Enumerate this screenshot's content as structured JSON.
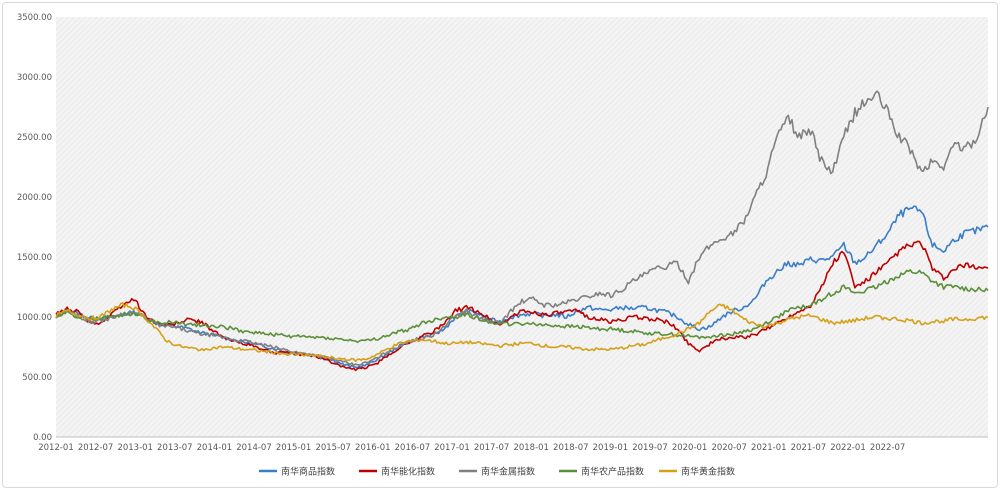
{
  "chart_data": {
    "type": "line",
    "title": "",
    "xlabel": "",
    "ylabel": "",
    "ylim": [
      0,
      3500
    ],
    "y_ticks": [
      "0.00",
      "500.00",
      "1000.00",
      "1500.00",
      "2000.00",
      "2500.00",
      "3000.00",
      "3500.00"
    ],
    "x_ticks": [
      "2012-01",
      "2012-07",
      "2013-01",
      "2013-07",
      "2014-01",
      "2014-07",
      "2015-01",
      "2015-07",
      "2016-01",
      "2016-07",
      "2017-01",
      "2017-07",
      "2018-01",
      "2018-07",
      "2019-01",
      "2019-07",
      "2020-01",
      "2020-07",
      "2021-01",
      "2021-07",
      "2022-01",
      "2022-07"
    ],
    "grid": "background hatched, no gridlines",
    "legend_position": "bottom",
    "series": [
      {
        "name": "南华商品指数",
        "color": "#3a7dc9",
        "values": [
          1010,
          1060,
          1030,
          990,
          990,
          1000,
          1020,
          1040,
          1000,
          950,
          930,
          920,
          900,
          870,
          850,
          830,
          810,
          790,
          770,
          750,
          730,
          700,
          690,
          680,
          660,
          640,
          600,
          580,
          600,
          650,
          700,
          760,
          800,
          830,
          850,
          900,
          1000,
          1050,
          1030,
          980,
          960,
          1000,
          1020,
          1030,
          1010,
          1020,
          1000,
          1050,
          1080,
          1060,
          1060,
          1080,
          1070,
          1080,
          1060,
          1040,
          1000,
          940,
          900,
          920,
          1000,
          1050,
          1080,
          1150,
          1300,
          1380,
          1450,
          1430,
          1480,
          1470,
          1500,
          1600,
          1450,
          1500,
          1600,
          1700,
          1850,
          1900,
          1880,
          1600,
          1550,
          1650,
          1700,
          1720,
          1750
        ]
      },
      {
        "name": "南华能化指数",
        "color": "#c00000",
        "values": [
          1020,
          1070,
          1040,
          960,
          950,
          1020,
          1100,
          1150,
          1020,
          950,
          930,
          950,
          980,
          960,
          900,
          830,
          800,
          780,
          750,
          720,
          700,
          700,
          690,
          680,
          660,
          620,
          580,
          560,
          580,
          620,
          680,
          750,
          800,
          840,
          880,
          940,
          1050,
          1080,
          1050,
          990,
          930,
          1000,
          1050,
          1040,
          1020,
          1030,
          1040,
          1050,
          1000,
          980,
          960,
          980,
          1000,
          990,
          980,
          960,
          900,
          780,
          720,
          780,
          820,
          830,
          830,
          850,
          900,
          950,
          1000,
          1050,
          1100,
          1250,
          1450,
          1550,
          1250,
          1300,
          1380,
          1450,
          1550,
          1600,
          1620,
          1400,
          1320,
          1400,
          1430,
          1420,
          1410
        ]
      },
      {
        "name": "南华金属指数",
        "color": "#808080",
        "values": [
          1000,
          1050,
          1010,
          960,
          970,
          990,
          1030,
          1040,
          1000,
          940,
          920,
          910,
          880,
          860,
          850,
          830,
          810,
          800,
          780,
          760,
          740,
          720,
          700,
          690,
          670,
          650,
          620,
          600,
          620,
          660,
          720,
          760,
          800,
          820,
          850,
          920,
          1010,
          1050,
          1000,
          960,
          950,
          1050,
          1130,
          1150,
          1100,
          1100,
          1120,
          1150,
          1170,
          1200,
          1180,
          1230,
          1300,
          1350,
          1400,
          1420,
          1450,
          1300,
          1500,
          1600,
          1650,
          1700,
          1800,
          2000,
          2200,
          2500,
          2650,
          2500,
          2550,
          2300,
          2200,
          2500,
          2700,
          2800,
          2850,
          2700,
          2500,
          2400,
          2200,
          2300,
          2250,
          2450,
          2400,
          2500,
          2750
        ]
      },
      {
        "name": "南华农产品指数",
        "color": "#5b8f3a",
        "values": [
          1000,
          1040,
          1000,
          980,
          990,
          1000,
          1020,
          1030,
          1000,
          950,
          960,
          950,
          940,
          930,
          930,
          920,
          900,
          880,
          870,
          860,
          850,
          840,
          840,
          830,
          830,
          820,
          810,
          800,
          800,
          820,
          850,
          880,
          900,
          950,
          970,
          1000,
          1000,
          1020,
          990,
          960,
          950,
          940,
          940,
          950,
          930,
          930,
          920,
          920,
          910,
          900,
          900,
          890,
          880,
          870,
          860,
          860,
          850,
          840,
          830,
          840,
          850,
          860,
          880,
          900,
          950,
          1000,
          1050,
          1080,
          1100,
          1150,
          1200,
          1250,
          1200,
          1220,
          1250,
          1300,
          1350,
          1380,
          1370,
          1300,
          1250,
          1250,
          1240,
          1230,
          1220
        ]
      },
      {
        "name": "南华黄金指数",
        "color": "#d4a017",
        "values": [
          1010,
          1050,
          1020,
          990,
          1000,
          1060,
          1100,
          1080,
          1000,
          900,
          800,
          760,
          740,
          730,
          740,
          750,
          740,
          730,
          720,
          710,
          700,
          690,
          690,
          680,
          670,
          660,
          650,
          640,
          650,
          690,
          740,
          780,
          800,
          810,
          800,
          780,
          780,
          790,
          780,
          770,
          760,
          770,
          780,
          780,
          760,
          750,
          750,
          740,
          730,
          730,
          730,
          740,
          760,
          770,
          800,
          830,
          860,
          900,
          950,
          1050,
          1100,
          1050,
          980,
          940,
          920,
          950,
          980,
          1000,
          1010,
          980,
          950,
          960,
          970,
          990,
          1000,
          990,
          980,
          970,
          950,
          960,
          970,
          980,
          980,
          990,
          1000
        ]
      }
    ]
  }
}
